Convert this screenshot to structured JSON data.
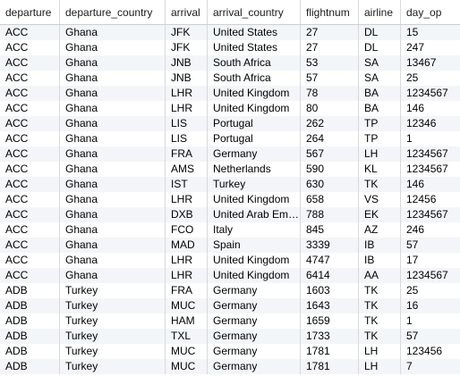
{
  "table": {
    "columns": [
      "departure",
      "departure_country",
      "arrival",
      "arrival_country",
      "flightnum",
      "airline",
      "day_op"
    ],
    "rows": [
      [
        "ACC",
        "Ghana",
        "JFK",
        "United States",
        "27",
        "DL",
        "15"
      ],
      [
        "ACC",
        "Ghana",
        "JFK",
        "United States",
        "27",
        "DL",
        "247"
      ],
      [
        "ACC",
        "Ghana",
        "JNB",
        "South Africa",
        "53",
        "SA",
        "13467"
      ],
      [
        "ACC",
        "Ghana",
        "JNB",
        "South Africa",
        "57",
        "SA",
        "25"
      ],
      [
        "ACC",
        "Ghana",
        "LHR",
        "United Kingdom",
        "78",
        "BA",
        "1234567"
      ],
      [
        "ACC",
        "Ghana",
        "LHR",
        "United Kingdom",
        "80",
        "BA",
        "146"
      ],
      [
        "ACC",
        "Ghana",
        "LIS",
        "Portugal",
        "262",
        "TP",
        "12346"
      ],
      [
        "ACC",
        "Ghana",
        "LIS",
        "Portugal",
        "264",
        "TP",
        "1"
      ],
      [
        "ACC",
        "Ghana",
        "FRA",
        "Germany",
        "567",
        "LH",
        "1234567"
      ],
      [
        "ACC",
        "Ghana",
        "AMS",
        "Netherlands",
        "590",
        "KL",
        "1234567"
      ],
      [
        "ACC",
        "Ghana",
        "IST",
        "Turkey",
        "630",
        "TK",
        "146"
      ],
      [
        "ACC",
        "Ghana",
        "LHR",
        "United Kingdom",
        "658",
        "VS",
        "12456"
      ],
      [
        "ACC",
        "Ghana",
        "DXB",
        "United Arab Em…",
        "788",
        "EK",
        "1234567"
      ],
      [
        "ACC",
        "Ghana",
        "FCO",
        "Italy",
        "845",
        "AZ",
        "246"
      ],
      [
        "ACC",
        "Ghana",
        "MAD",
        "Spain",
        "3339",
        "IB",
        "57"
      ],
      [
        "ACC",
        "Ghana",
        "LHR",
        "United Kingdom",
        "4747",
        "IB",
        "17"
      ],
      [
        "ACC",
        "Ghana",
        "LHR",
        "United Kingdom",
        "6414",
        "AA",
        "1234567"
      ],
      [
        "ADB",
        "Turkey",
        "FRA",
        "Germany",
        "1603",
        "TK",
        "25"
      ],
      [
        "ADB",
        "Turkey",
        "MUC",
        "Germany",
        "1643",
        "TK",
        "16"
      ],
      [
        "ADB",
        "Turkey",
        "HAM",
        "Germany",
        "1659",
        "TK",
        "1"
      ],
      [
        "ADB",
        "Turkey",
        "TXL",
        "Germany",
        "1733",
        "TK",
        "57"
      ],
      [
        "ADB",
        "Turkey",
        "MUC",
        "Germany",
        "1781",
        "LH",
        "123456"
      ],
      [
        "ADB",
        "Turkey",
        "MUC",
        "Germany",
        "1781",
        "LH",
        "7"
      ]
    ]
  }
}
